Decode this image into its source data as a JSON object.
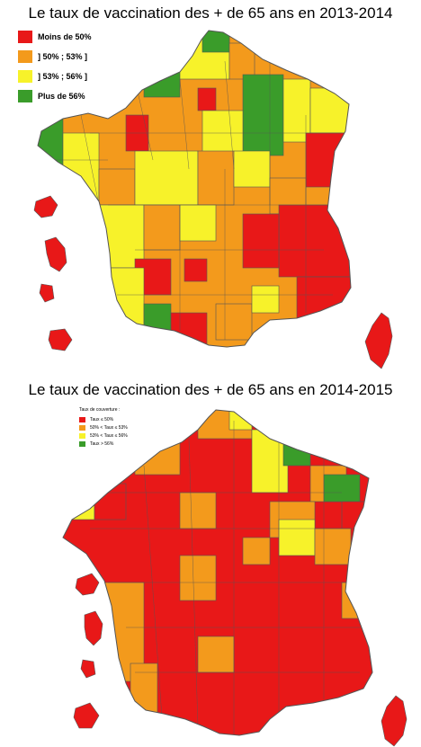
{
  "colors": {
    "red": "#e81818",
    "orange": "#f39a1c",
    "yellow": "#f7f22a",
    "green": "#3a9c2a",
    "border": "#555555"
  },
  "map1": {
    "title": "Le taux de vaccination des + de 65 ans en 2013-2014",
    "legend": [
      {
        "label": "Moins de 50%",
        "color": "red"
      },
      {
        "label": "] 50% ; 53% ]",
        "color": "orange"
      },
      {
        "label": "] 53% ; 56% ]",
        "color": "yellow"
      },
      {
        "label": "Plus de 56%",
        "color": "green"
      }
    ]
  },
  "map2": {
    "title": "Le taux de vaccination des + de 65 ans en 2014-2015",
    "legend_title": "Taux de couverture :",
    "legend": [
      {
        "label": "Taux ≤ 50%",
        "color": "red"
      },
      {
        "label": "50% < Taux ≤ 53%",
        "color": "orange"
      },
      {
        "label": "53% < Taux ≤ 56%",
        "color": "yellow"
      },
      {
        "label": "Taux > 56%",
        "color": "green"
      }
    ]
  }
}
